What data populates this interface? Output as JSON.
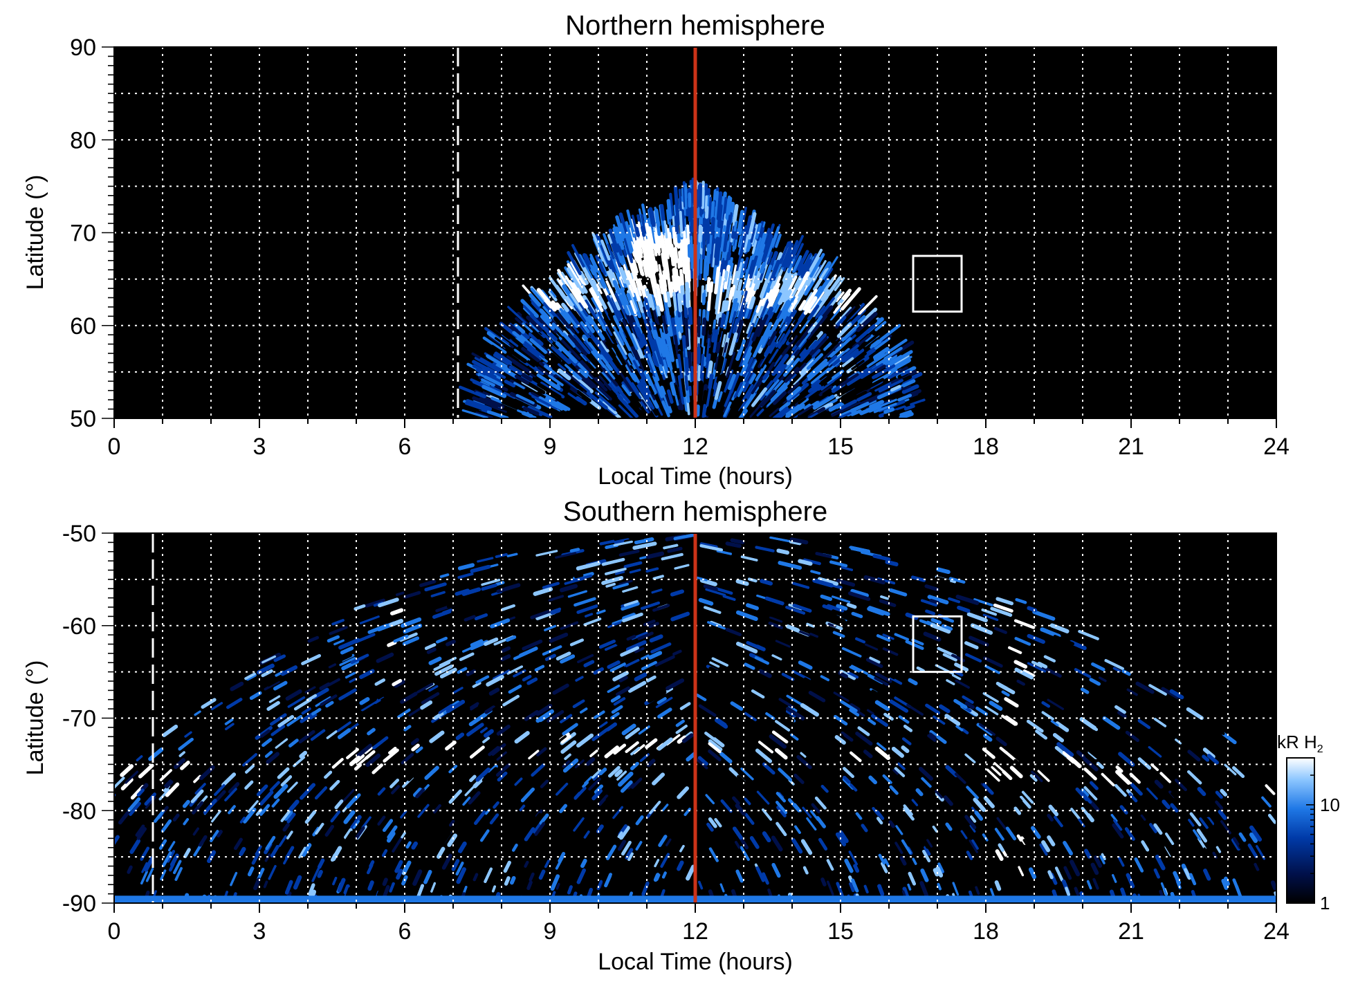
{
  "chart_data": [
    {
      "type": "heatmap",
      "title": "Northern hemisphere",
      "xlabel": "Local Time (hours)",
      "ylabel": "Latitude (°)",
      "xlim": [
        0,
        24
      ],
      "ylim": [
        50,
        90
      ],
      "xticks": [
        "0",
        "3",
        "6",
        "9",
        "12",
        "15",
        "18",
        "21",
        "24"
      ],
      "yticks": [
        "50",
        "60",
        "70",
        "80",
        "90"
      ],
      "grid": true,
      "emission_region": {
        "lt_range": [
          7.7,
          16.7
        ],
        "peak_lt": 12,
        "max_lat": 73.5,
        "oval_lat": 63,
        "bright_spot": {
          "lt": 11.3,
          "lat": 66
        }
      },
      "vertical_lines": [
        {
          "name": "noon",
          "x": 12,
          "color": "#cc3318",
          "style": "solid"
        },
        {
          "name": "dashed-white",
          "x": 7.1,
          "color": "#ffffff",
          "style": "dashed"
        }
      ],
      "box": {
        "x": [
          16.5,
          17.5
        ],
        "y": [
          61.5,
          67.5
        ]
      }
    },
    {
      "type": "heatmap",
      "title": "Southern hemisphere",
      "xlabel": "Local Time (hours)",
      "ylabel": "Latitude (°)",
      "xlim": [
        0,
        24
      ],
      "ylim": [
        -90,
        -50
      ],
      "xticks": [
        "0",
        "3",
        "6",
        "9",
        "12",
        "15",
        "18",
        "21",
        "24"
      ],
      "yticks": [
        "-90",
        "-80",
        "-70",
        "-60",
        "-50"
      ],
      "grid": true,
      "emission_region": {
        "lt_range": [
          0,
          24
        ],
        "oval_lat": -72,
        "dawn_arc_lt": 6,
        "dusk_arc_lt": 18.5
      },
      "vertical_lines": [
        {
          "name": "noon",
          "x": 12,
          "color": "#cc3318",
          "style": "solid"
        },
        {
          "name": "dashed-white",
          "x": 0.8,
          "color": "#ffffff",
          "style": "dashed"
        }
      ],
      "box": {
        "x": [
          16.5,
          17.5
        ],
        "y": [
          -65,
          -59
        ]
      }
    }
  ],
  "colorbar": {
    "label": "kR H",
    "label_sub": "2",
    "scale": "log",
    "range": [
      1,
      30
    ],
    "ticks": [
      "1",
      "10"
    ],
    "colors": [
      "#000000",
      "#00104a",
      "#003aa8",
      "#1f78e6",
      "#8cc6ff",
      "#ffffff"
    ]
  }
}
